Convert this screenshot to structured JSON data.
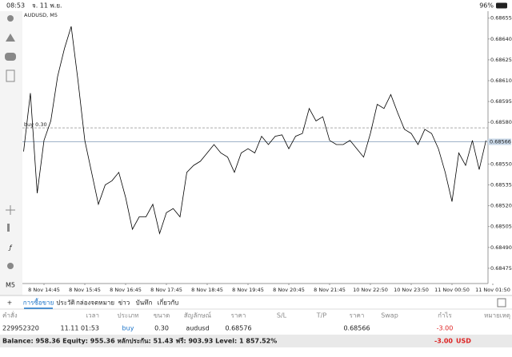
{
  "status_bar": {
    "time": "08:53",
    "date": "จ. 11 พ.ย.",
    "battery": "96%"
  },
  "toolbar_timeframe": "M5",
  "chart_data": {
    "type": "line",
    "title": "AUDUSD, M5",
    "categories": [
      null,
      null,
      null,
      "8 Nov 14:45",
      null,
      null,
      null,
      null,
      null,
      "8 Nov 15:45",
      null,
      null,
      null,
      null,
      null,
      "8 Nov 16:45",
      null,
      null,
      null,
      null,
      null,
      "8 Nov 17:45",
      null,
      null,
      null,
      null,
      null,
      "8 Nov 18:45",
      null,
      null,
      null,
      null,
      null,
      "8 Nov 19:45",
      null,
      null,
      null,
      null,
      null,
      "8 Nov 20:45",
      null,
      null,
      null,
      null,
      null,
      "8 Nov 21:45",
      null,
      null,
      null,
      null,
      null,
      "10 Nov 22:50",
      null,
      null,
      null,
      null,
      null,
      "10 Nov 23:50",
      null,
      null,
      null,
      null,
      null,
      "11 Nov 00:50",
      null,
      null,
      null,
      null,
      null,
      "11 Nov 01:50"
    ],
    "series": [
      {
        "color": "#000000",
        "values": [
          0.68559,
          0.68601,
          0.68529,
          0.68567,
          0.68581,
          0.68613,
          0.68633,
          0.68649,
          0.6861,
          0.68567,
          0.68544,
          0.68521,
          0.68535,
          0.68538,
          0.68544,
          0.68526,
          0.68503,
          0.68512,
          0.68512,
          0.68521,
          0.685,
          0.68515,
          0.68518,
          0.68512,
          0.68544,
          0.68549,
          0.68552,
          0.68558,
          0.68564,
          0.68558,
          0.68555,
          0.68544,
          0.68558,
          0.68561,
          0.68558,
          0.6857,
          0.68564,
          0.6857,
          0.68571,
          0.68561,
          0.6857,
          0.68572,
          0.6859,
          0.68581,
          0.68584,
          0.68567,
          0.68564,
          0.68564,
          0.68567,
          0.68561,
          0.68555,
          0.68572,
          0.68593,
          0.6859,
          0.686,
          0.68587,
          0.68575,
          0.68572,
          0.68564,
          0.68575,
          0.68572,
          0.68561,
          0.68544,
          0.68523,
          0.68558,
          0.68549,
          0.68567,
          0.68546,
          0.68567,
          null
        ]
      }
    ],
    "ylim": [
      0.68464,
      0.6866
    ],
    "yticks": [
      0.68655,
      {
        "value": 0.6864,
        "label": "0.68640"
      },
      0.68625,
      {
        "value": 0.6861,
        "label": "0.68610"
      },
      0.68595,
      {
        "value": 0.6858,
        "label": "0.68580"
      },
      {
        "value": 0.6855,
        "label": "0.68550"
      },
      0.68535,
      {
        "value": 0.6852,
        "label": "0.68520"
      },
      0.68505,
      {
        "value": 0.6849,
        "label": "0.68490"
      },
      0.68475
    ],
    "bid": 0.68566,
    "order_line": {
      "label": "buy 0.30",
      "value": 0.68576
    }
  },
  "tabs": [
    "การซื้อขาย",
    "ประวัติ",
    "กล่องจดหมาย",
    "ข่าว",
    "บันทึก",
    "เกี่ยวกับ"
  ],
  "table": {
    "columns": [
      "คำสั่ง",
      "เวลา",
      "ประเภท",
      "ขนาด",
      "สัญลักษณ์",
      "ราคา",
      "S/L",
      "T/P",
      "ราคา",
      "Swap",
      "กำไร",
      "หมายเหตุ"
    ],
    "rows": [
      [
        "229952320",
        "11.11 01:53",
        "buy",
        "0.30",
        "audusd",
        "0.68576",
        null,
        null,
        "0.68566",
        null,
        "-3.00",
        null
      ]
    ]
  },
  "footer": {
    "summary": "Balance: 958.36 Equity: 955.36 หลักประกัน: 51.43 ฟรี: 903.93 Level: 1 857.52%",
    "profit": "-3.00",
    "currency": "USD"
  }
}
